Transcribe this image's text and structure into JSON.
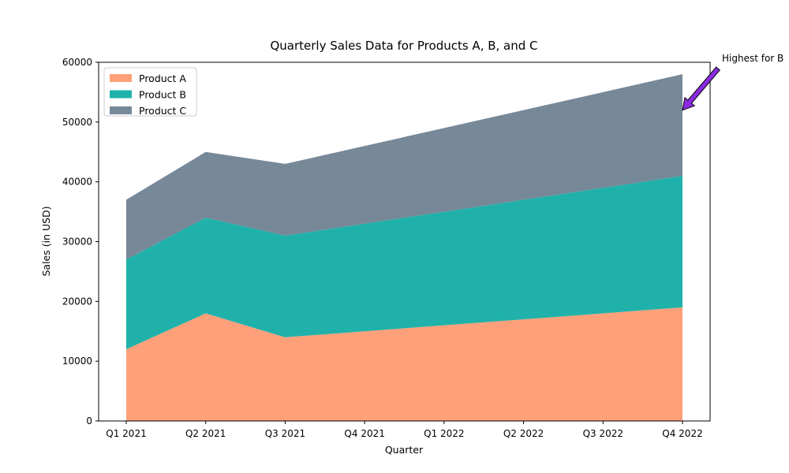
{
  "chart_data": {
    "type": "area",
    "stacked": true,
    "title": "Quarterly Sales Data for Products A, B, and C",
    "xlabel": "Quarter",
    "ylabel": "Sales (in USD)",
    "categories": [
      "Q1 2021",
      "Q2 2021",
      "Q3 2021",
      "Q4 2021",
      "Q1 2022",
      "Q2 2022",
      "Q3 2022",
      "Q4 2022"
    ],
    "series": [
      {
        "name": "Product A",
        "color": "#FFA07A",
        "values": [
          12000,
          18000,
          14000,
          15000,
          16000,
          17000,
          18000,
          19000
        ]
      },
      {
        "name": "Product B",
        "color": "#20B2AA",
        "values": [
          15000,
          16000,
          17000,
          18000,
          19000,
          20000,
          21000,
          22000
        ]
      },
      {
        "name": "Product C",
        "color": "#778899",
        "values": [
          10000,
          11000,
          12000,
          13000,
          14000,
          15000,
          16000,
          17000
        ]
      }
    ],
    "ylim": [
      0,
      60000
    ],
    "yticks": [
      0,
      10000,
      20000,
      30000,
      40000,
      50000,
      60000
    ],
    "grid": false,
    "legend_position": "top-left",
    "annotation": {
      "text": "Highest for B",
      "category": "Q4 2022",
      "y": 52000,
      "arrow_color": "#8A2BE2"
    }
  }
}
